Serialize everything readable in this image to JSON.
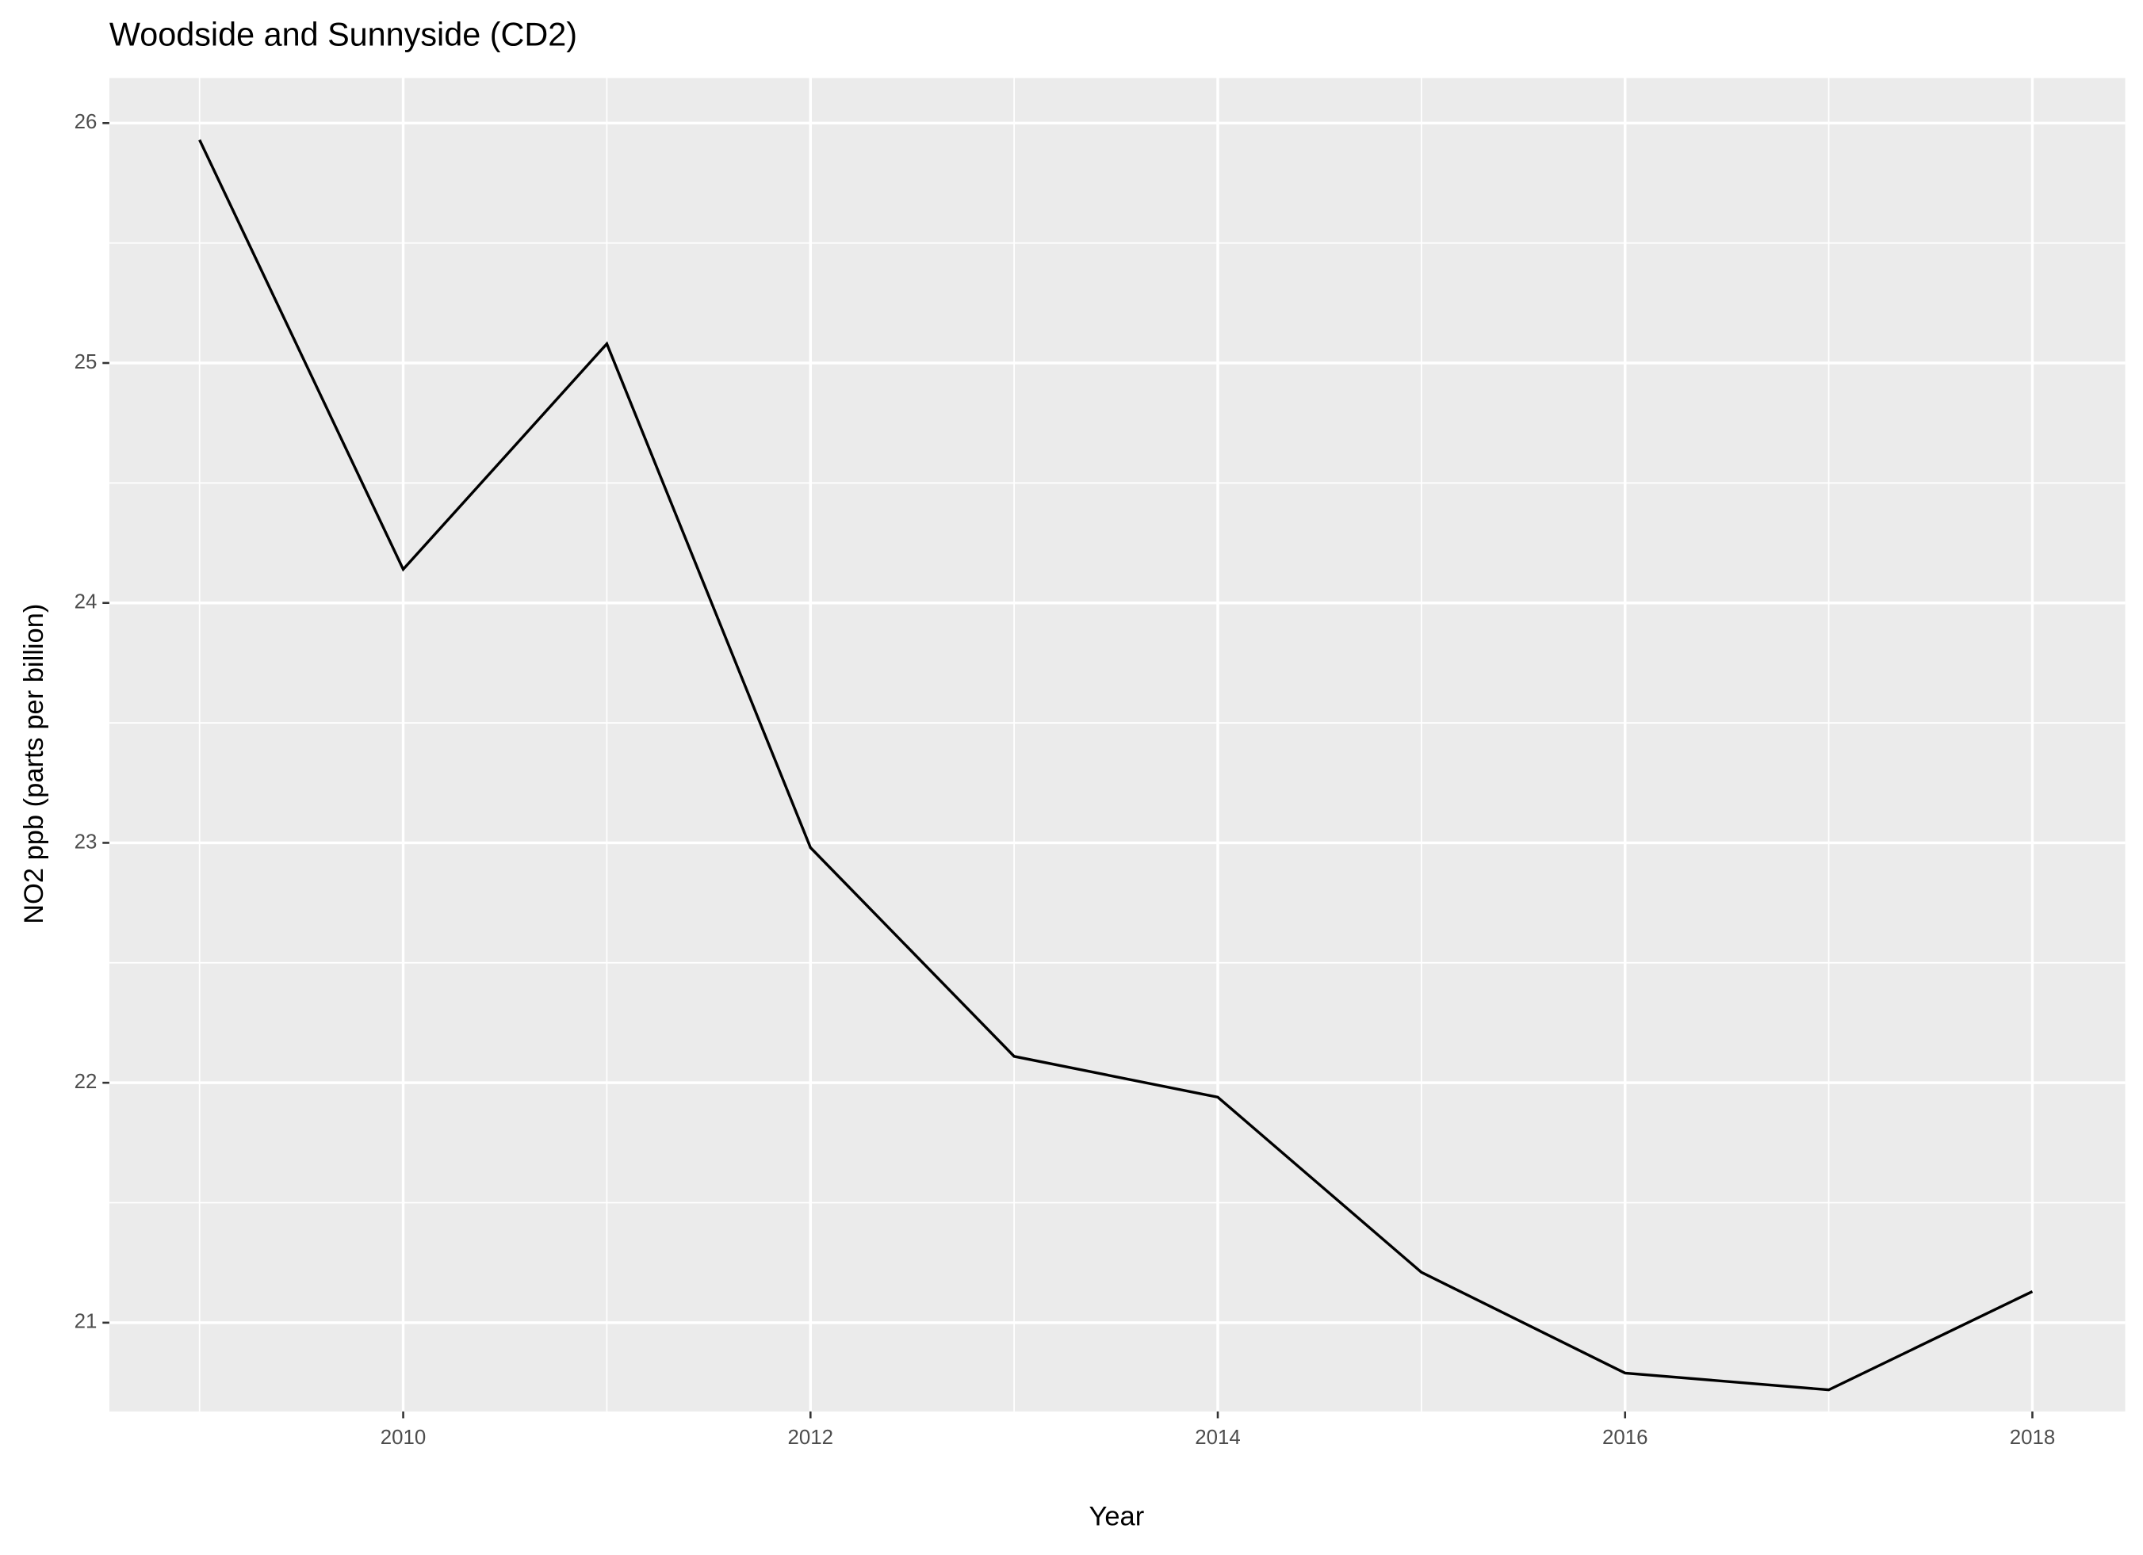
{
  "chart_data": {
    "type": "line",
    "title": "Woodside and Sunnyside (CD2)",
    "x_label": "Year",
    "y_label": "NO2 ppb (parts per billion)",
    "x": [
      2009,
      2010,
      2011,
      2012,
      2013,
      2014,
      2015,
      2016,
      2017,
      2018
    ],
    "values": [
      25.93,
      24.14,
      25.08,
      22.98,
      22.11,
      21.94,
      21.21,
      20.79,
      20.72,
      21.13
    ],
    "color": "#000000",
    "xlim": [
      2008.557,
      2018.456
    ],
    "xticks": [
      2010,
      2012,
      2014,
      2016,
      2018
    ],
    "ylim": [
      20.63,
      26.188
    ],
    "yticks": [
      21,
      22,
      23,
      24,
      25,
      26
    ],
    "grid": true
  }
}
